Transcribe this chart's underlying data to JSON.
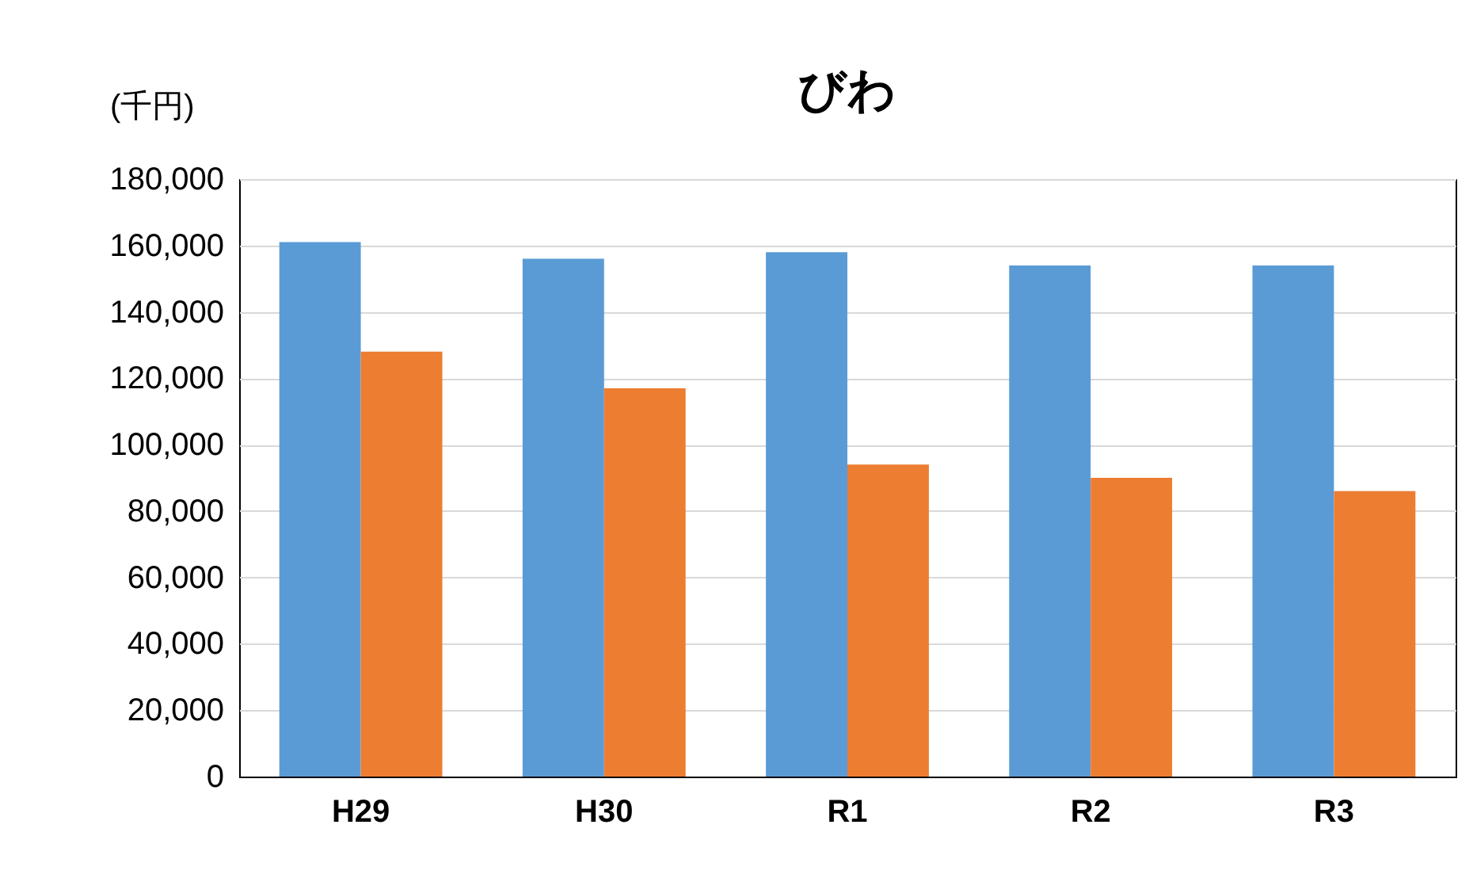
{
  "chart_data": {
    "type": "bar",
    "title": "びわ",
    "ylabel": "(千円)",
    "categories": [
      "H29",
      "H30",
      "R1",
      "R2",
      "R3"
    ],
    "series": [
      {
        "color": "#5b9bd5",
        "values": [
          161000,
          156000,
          158000,
          154000,
          154000
        ]
      },
      {
        "color": "#ed7d31",
        "values": [
          128000,
          117000,
          94000,
          90000,
          86000
        ]
      }
    ],
    "ylim": [
      0,
      180000
    ],
    "yticks": [
      0,
      {
        "value": 20000,
        "label": "20,000"
      },
      {
        "value": 40000,
        "label": "40,000"
      },
      {
        "value": 60000,
        "label": "60,000"
      },
      {
        "value": 80000,
        "label": "80,000"
      },
      {
        "value": 100000,
        "label": "100,000"
      },
      {
        "value": 120000,
        "label": "120,000"
      },
      {
        "value": 140000,
        "label": "140,000"
      },
      {
        "value": 160000,
        "label": "160,000"
      },
      {
        "value": 180000,
        "label": "180,000"
      }
    ],
    "grid": "y",
    "legend": false
  }
}
